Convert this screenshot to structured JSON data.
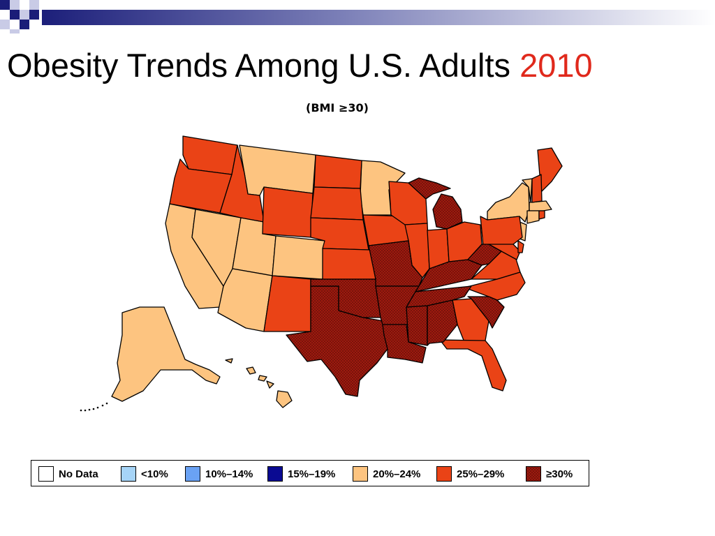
{
  "title": {
    "main": "Obesity Trends Among U.S. Adults",
    "year": "2010"
  },
  "subtitle": "(BMI ≥30)",
  "colors": {
    "title_year": "#e0291c",
    "no_data": "#ffffff",
    "lt10": "#a6d4f7",
    "c10_14": "#6aa2f4",
    "c15_19": "#0a0a92",
    "c20_24": "#fdc480",
    "c25_29": "#ea4316",
    "ge30": "#9e1a0f"
  },
  "legend": [
    {
      "label": "No Data",
      "color": "#ffffff"
    },
    {
      "label": "<10%",
      "color": "#a6d4f7"
    },
    {
      "label": "10%–14%",
      "color": "#6aa2f4"
    },
    {
      "label": "15%–19%",
      "color": "#0a0a92"
    },
    {
      "label": "20%–24%",
      "color": "#fdc480"
    },
    {
      "label": "25%–29%",
      "color": "#ea4316"
    },
    {
      "label": "≥30%",
      "color": "#9e1a0f",
      "pattern": "dotted"
    }
  ],
  "states_by_category": {
    "20%–24%": [
      "MT",
      "MN",
      "CA",
      "NV",
      "UT",
      "CO",
      "AZ",
      "AK",
      "HI",
      "NY",
      "VT",
      "MA",
      "CT",
      "NJ"
    ],
    "25%–29%": [
      "WA",
      "OR",
      "ID",
      "WY",
      "ND",
      "SD",
      "NE",
      "KS",
      "NM",
      "IA",
      "WI",
      "IL",
      "IN",
      "OH",
      "PA",
      "VA",
      "NC",
      "GA",
      "FL",
      "ME",
      "NH",
      "RI",
      "MD",
      "DE"
    ],
    "≥30%": [
      "TX",
      "OK",
      "MO",
      "AR",
      "LA",
      "MS",
      "AL",
      "TN",
      "KY",
      "WV",
      "MI",
      "SC"
    ]
  }
}
